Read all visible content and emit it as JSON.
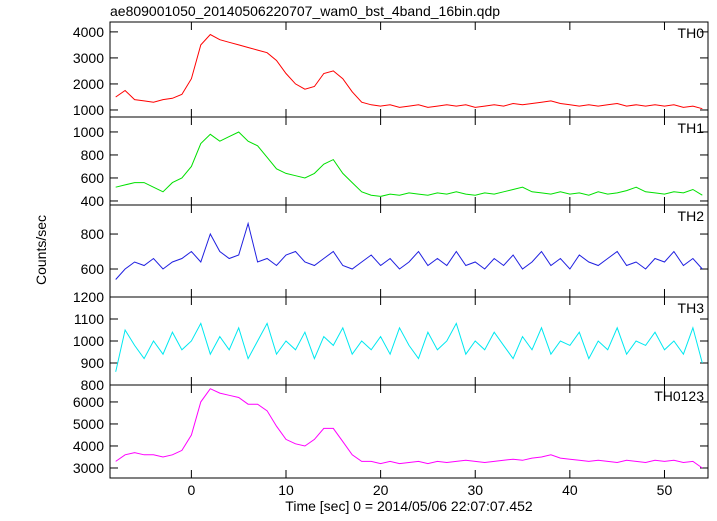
{
  "chart_data": {
    "type": "line",
    "title": "ae809001050_20140506220707_wam0_bst_4band_16bin.qdp",
    "xlabel": "Time [sec] 0 = 2014/05/06 22:07:07.452",
    "ylabel": "Counts/sec",
    "xlim": [
      -8.6,
      54.6
    ],
    "xticks": [
      0,
      10,
      20,
      30,
      40,
      50
    ],
    "x": [
      -8,
      -7,
      -6,
      -5,
      -4,
      -3,
      -2,
      -1,
      0,
      1,
      2,
      3,
      4,
      5,
      6,
      7,
      8,
      9,
      10,
      11,
      12,
      13,
      14,
      15,
      16,
      17,
      18,
      19,
      20,
      21,
      22,
      23,
      24,
      25,
      26,
      27,
      28,
      29,
      30,
      31,
      32,
      33,
      34,
      35,
      36,
      37,
      38,
      39,
      40,
      41,
      42,
      43,
      44,
      45,
      46,
      47,
      48,
      49,
      50,
      51,
      52,
      53,
      54
    ],
    "panels": [
      {
        "name": "TH0",
        "color": "#ff0000",
        "ylim": [
          730,
          4380
        ],
        "yticks": [
          1000,
          2000,
          3000,
          4000
        ],
        "values": [
          1500,
          1750,
          1400,
          1350,
          1300,
          1400,
          1450,
          1600,
          2200,
          3500,
          3900,
          3700,
          3600,
          3500,
          3400,
          3300,
          3200,
          2900,
          2400,
          2000,
          1800,
          1900,
          2400,
          2500,
          2200,
          1700,
          1300,
          1200,
          1150,
          1200,
          1100,
          1150,
          1200,
          1100,
          1150,
          1200,
          1150,
          1200,
          1100,
          1150,
          1200,
          1150,
          1250,
          1200,
          1250,
          1300,
          1350,
          1250,
          1200,
          1150,
          1200,
          1150,
          1200,
          1250,
          1150,
          1200,
          1150,
          1200,
          1150,
          1200,
          1100,
          1150,
          1050
        ]
      },
      {
        "name": "TH1",
        "color": "#00e000",
        "ylim": [
          365,
          1130
        ],
        "yticks": [
          400,
          600,
          800,
          1000
        ],
        "values": [
          520,
          540,
          560,
          560,
          520,
          480,
          560,
          600,
          700,
          900,
          980,
          920,
          960,
          1000,
          920,
          880,
          780,
          680,
          640,
          620,
          600,
          640,
          720,
          760,
          640,
          560,
          480,
          450,
          440,
          460,
          450,
          470,
          460,
          450,
          470,
          460,
          480,
          460,
          450,
          470,
          460,
          480,
          500,
          520,
          480,
          470,
          460,
          480,
          460,
          470,
          450,
          480,
          460,
          470,
          490,
          520,
          480,
          470,
          460,
          480,
          470,
          500,
          450
        ]
      },
      {
        "name": "TH2",
        "color": "#2020e0",
        "ylim": [
          440,
          966
        ],
        "yticks": [
          600,
          800
        ],
        "values": [
          540,
          600,
          640,
          620,
          660,
          600,
          640,
          660,
          700,
          640,
          800,
          700,
          660,
          680,
          860,
          640,
          660,
          620,
          680,
          700,
          640,
          620,
          660,
          700,
          620,
          600,
          640,
          680,
          620,
          660,
          600,
          640,
          700,
          620,
          660,
          620,
          700,
          620,
          640,
          600,
          660,
          620,
          680,
          600,
          640,
          700,
          620,
          660,
          600,
          680,
          640,
          620,
          660,
          700,
          620,
          640,
          600,
          660,
          640,
          700,
          620,
          660,
          600
        ]
      },
      {
        "name": "TH3",
        "color": "#00e8f0",
        "ylim": [
          800,
          1200
        ],
        "yticks": [
          800,
          900,
          1000,
          1100,
          1200
        ],
        "values": [
          860,
          1050,
          980,
          920,
          1000,
          940,
          1040,
          960,
          1000,
          1080,
          940,
          1020,
          960,
          1060,
          920,
          1000,
          1080,
          940,
          1000,
          960,
          1040,
          920,
          1020,
          980,
          1060,
          940,
          1000,
          960,
          1020,
          940,
          1060,
          980,
          920,
          1040,
          960,
          1000,
          1080,
          940,
          1000,
          960,
          1040,
          980,
          920,
          1020,
          960,
          1060,
          940,
          1000,
          980,
          1040,
          920,
          1000,
          960,
          1060,
          940,
          1000,
          980,
          1040,
          960,
          1000,
          940,
          1060,
          900
        ]
      },
      {
        "name": "TH0123",
        "color": "#ff00ff",
        "ylim": [
          2545,
          6770
        ],
        "yticks": [
          3000,
          4000,
          5000,
          6000
        ],
        "values": [
          3300,
          3600,
          3700,
          3600,
          3600,
          3500,
          3600,
          3800,
          4500,
          6000,
          6600,
          6400,
          6300,
          6200,
          5900,
          5900,
          5600,
          4900,
          4300,
          4100,
          4000,
          4300,
          4800,
          4800,
          4200,
          3600,
          3300,
          3300,
          3200,
          3300,
          3200,
          3250,
          3300,
          3200,
          3300,
          3250,
          3300,
          3350,
          3300,
          3250,
          3300,
          3350,
          3400,
          3350,
          3450,
          3500,
          3600,
          3450,
          3400,
          3350,
          3300,
          3350,
          3300,
          3250,
          3350,
          3300,
          3250,
          3350,
          3300,
          3350,
          3250,
          3300,
          3000
        ]
      }
    ]
  }
}
